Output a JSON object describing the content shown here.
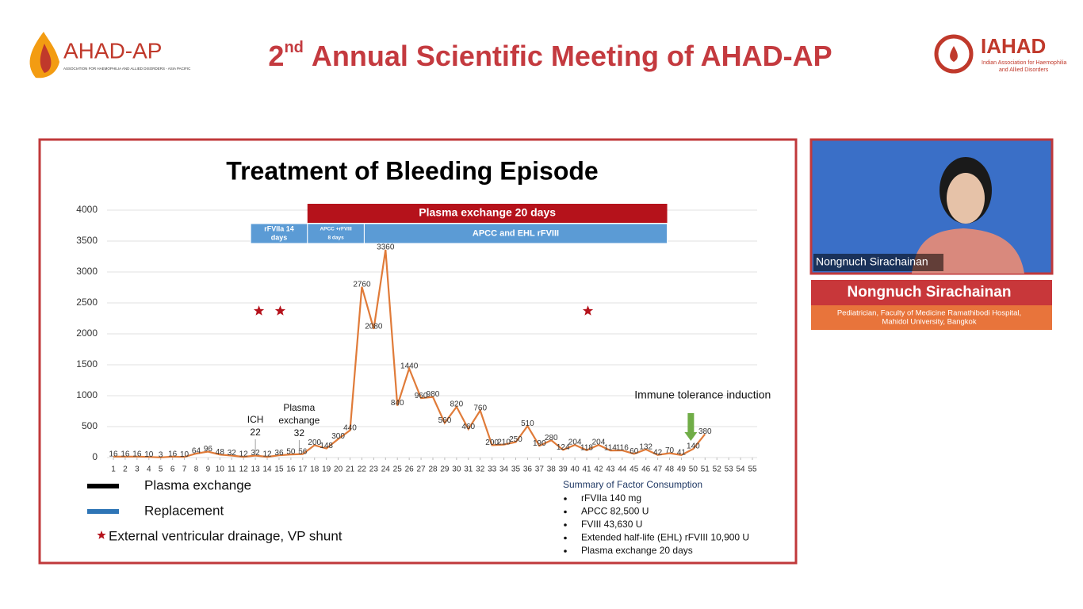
{
  "header": {
    "logo_left": {
      "name": "AHAD-AP",
      "tagline": "ASSOCIATION FOR HAEMOPHILIA AND ALLIED DISORDERS - ASIA PACIFIC"
    },
    "title": {
      "number": "2",
      "suffix": "nd",
      "rest": "Annual Scientific Meeting of AHAD-AP"
    },
    "logo_right": {
      "name": "IAHAD",
      "tagline_lines": [
        "Indian Association for Haemophilia",
        "and Allied Disorders"
      ]
    }
  },
  "chart_data": {
    "type": "line",
    "title": "Treatment of Bleeding Episode",
    "x": [
      1,
      2,
      3,
      4,
      5,
      6,
      7,
      8,
      9,
      10,
      11,
      12,
      13,
      14,
      15,
      16,
      17,
      18,
      19,
      20,
      21,
      22,
      23,
      24,
      25,
      26,
      27,
      28,
      29,
      30,
      31,
      32,
      33,
      34,
      35,
      36,
      37,
      38,
      39,
      40,
      41,
      42,
      43,
      44,
      45,
      46,
      47,
      48,
      49,
      50,
      51
    ],
    "values": [
      16,
      16,
      16,
      10,
      3,
      16,
      10,
      64,
      96,
      48,
      32,
      12,
      32,
      12,
      36,
      50,
      56,
      200,
      148,
      300,
      440,
      2760,
      2080,
      3360,
      840,
      1440,
      960,
      980,
      560,
      820,
      460,
      760,
      200,
      210,
      250,
      510,
      190,
      280,
      124,
      204,
      118,
      204,
      114,
      116,
      60,
      132,
      42,
      70,
      41,
      140,
      380
    ],
    "color": "#e07b39",
    "xlim": [
      1,
      55
    ],
    "xticks": [
      1,
      2,
      3,
      4,
      5,
      6,
      7,
      8,
      9,
      10,
      11,
      12,
      13,
      14,
      15,
      16,
      17,
      18,
      19,
      20,
      21,
      22,
      23,
      24,
      25,
      26,
      27,
      28,
      29,
      30,
      31,
      32,
      33,
      34,
      35,
      36,
      37,
      38,
      39,
      40,
      41,
      42,
      43,
      44,
      45,
      46,
      47,
      48,
      49,
      50,
      51,
      52,
      53,
      54,
      55
    ],
    "ylim": [
      0,
      4000
    ],
    "yticks": [
      0,
      500,
      1000,
      1500,
      2000,
      2500,
      3000,
      3500,
      4000
    ],
    "grid": true,
    "plasma_band": {
      "label": "Plasma exchange 20 days",
      "start": 17.4,
      "end": 47.8,
      "color": "#b5121b"
    },
    "replacement_bands": [
      {
        "label_lines": [
          "rFVIIa 14",
          "days"
        ],
        "start": 12.6,
        "end": 17.4,
        "color": "#5b9bd5"
      },
      {
        "label_lines": [
          "APCC +rFVIII",
          "8 days"
        ],
        "start": 17.4,
        "end": 22.2,
        "color": "#5b9bd5"
      },
      {
        "label_lines": [
          "APCC and EHL rFVIII"
        ],
        "start": 22.2,
        "end": 47.8,
        "color": "#5b9bd5"
      }
    ],
    "markers": {
      "x": [
        13.3,
        15.1,
        41.1
      ],
      "values": [
        2370,
        2370,
        2370
      ],
      "color": "#b5121b"
    },
    "annotations": [
      {
        "lines": [
          "ICH",
          "22"
        ],
        "x": 13
      },
      {
        "lines": [
          "Plasma",
          "exchange",
          "32"
        ],
        "x": 16.7
      },
      {
        "lines": [
          "Immune tolerance induction"
        ],
        "x": 50.8,
        "arrow_x": 49.8,
        "arrow_color": "#70ad47"
      }
    ],
    "legend": [
      {
        "label": "Plasma exchange",
        "color": "#000000"
      },
      {
        "label": "Replacement",
        "color": "#2e75b6"
      },
      {
        "label": "External ventricular drainage, VP shunt",
        "color": "#b5121b"
      }
    ],
    "summary": {
      "title": "Summary of Factor Consumption",
      "items": [
        "rFVIIa 140 mg",
        "APCC 82,500 U",
        "FVIII  43,630 U",
        "Extended half-life (EHL) rFVIII 10,900 U",
        "Plasma exchange 20 days"
      ]
    }
  },
  "presenter": {
    "overlay_name": "Nongnuch Sirachainan",
    "name": "Nongnuch Sirachainan",
    "affiliation_lines": [
      "Pediatrician, Faculty of Medicine Ramathibodi Hospital,",
      "Mahidol University, Bangkok"
    ]
  }
}
